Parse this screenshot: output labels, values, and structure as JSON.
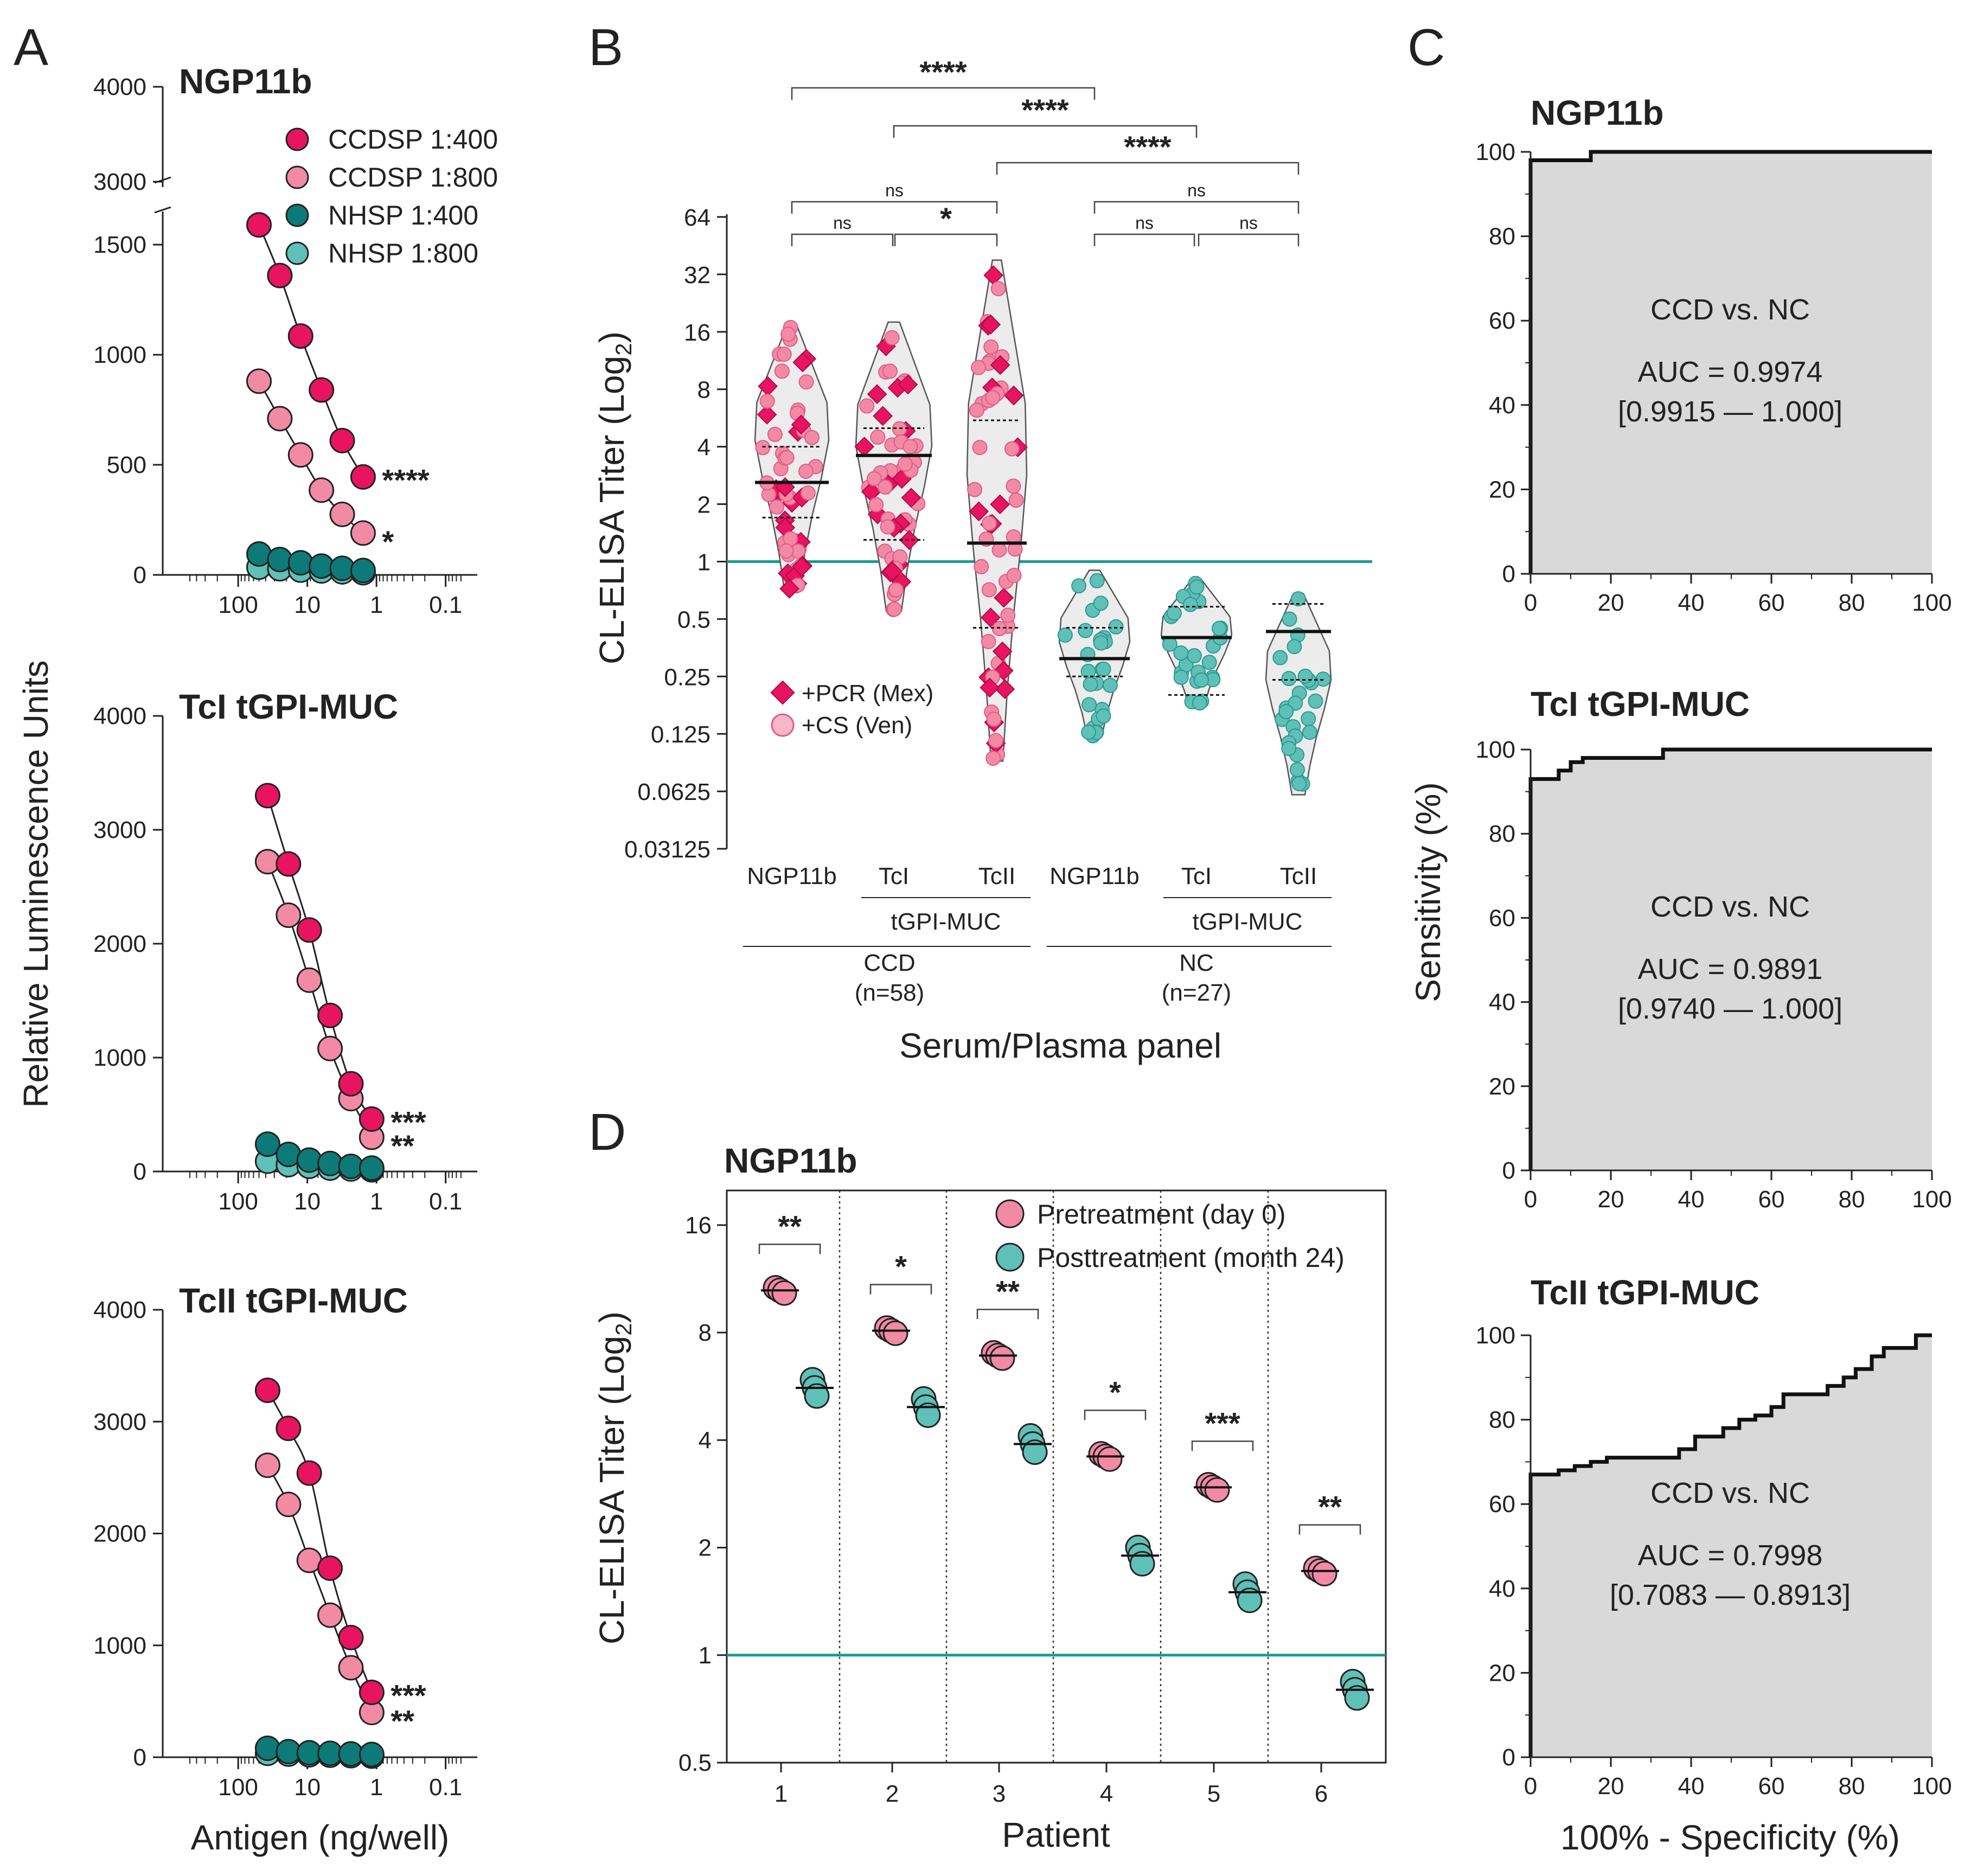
{
  "colors": {
    "ccd_dark": "#e8145f",
    "ccd_light": "#f28aa6",
    "nc_dark": "#0e7a78",
    "nc_light": "#5fc0b8",
    "cutoff": "#1a9a94",
    "roc_fill": "#d9d9d9"
  },
  "panel_labels": {
    "a": "A",
    "b": "B",
    "c": "C",
    "d": "D"
  },
  "panel_a": {
    "ylabel": "Relative Luminescence Units",
    "xlabel": "Antigen (ng/well)",
    "legend": [
      "CCDSP 1:400",
      "CCDSP 1:800",
      "NHSP 1:400",
      "NHSP 1:800"
    ],
    "x_ticks": [
      "100",
      "10",
      "1",
      "0.1"
    ]
  },
  "panel_b": {
    "ylabel": "CL-ELISA Titer (Log",
    "ylabel_sub": "2",
    "ylabel_close": ")",
    "xlabel": "Serum/Plasma panel",
    "y_ticks": [
      "64",
      "32",
      "16",
      "8",
      "4",
      "2",
      "1",
      "0.5",
      "0.25",
      "0.125",
      "0.0625",
      "0.03125"
    ],
    "categories": [
      "NGP11b",
      "TcI",
      "TcII",
      "NGP11b",
      "TcI",
      "TcII"
    ],
    "subgroup": "tGPI-MUC",
    "groups": [
      {
        "name": "CCD",
        "n": "(n=58)"
      },
      {
        "name": "NC",
        "n": "(n=27)"
      }
    ],
    "legend": [
      "+PCR (Mex)",
      "+CS (Ven)"
    ],
    "sig": {
      "ccd_ngp_tci": "ns",
      "ccd_tci_tcii": "*",
      "ccd_ngp_tcii": "ns",
      "nc_ngp_tci": "ns",
      "nc_tci_tcii": "ns",
      "nc_ngp_tcii": "ns",
      "ngp_vs_nc": "****",
      "tci_vs_nc": "****",
      "tcii_vs_nc": "****"
    }
  },
  "panel_c": {
    "ylabel": "Sensitivity (%)",
    "xlabel": "100% - Specificity (%)",
    "ticks": [
      "0",
      "20",
      "40",
      "60",
      "80",
      "100"
    ],
    "plots": [
      {
        "title": "NGP11b",
        "label": "CCD vs. NC",
        "auc": "AUC = 0.9974",
        "ci": "[0.9915 — 1.000]"
      },
      {
        "title": "TcI tGPI-MUC",
        "label": "CCD vs. NC",
        "auc": "AUC = 0.9891",
        "ci": "[0.9740 — 1.000]"
      },
      {
        "title": "TcII tGPI-MUC",
        "label": "CCD vs. NC",
        "auc": "AUC = 0.7998",
        "ci": "[0.7083 — 0.8913]"
      }
    ]
  },
  "panel_d": {
    "title": "NGP11b",
    "ylabel": "CL-ELISA Titer (Log",
    "ylabel_sub": "2",
    "ylabel_close": ")",
    "xlabel": "Patient",
    "y_ticks": [
      "16",
      "8",
      "4",
      "2",
      "1",
      "0.5"
    ],
    "patients": [
      "1",
      "2",
      "3",
      "4",
      "5",
      "6"
    ],
    "legend": [
      "Pretreatment (day 0)",
      "Posttreatment (month 24)"
    ],
    "sig": [
      "**",
      "*",
      "**",
      "*",
      "***",
      "**"
    ]
  },
  "chart_data": [
    {
      "type": "scatter",
      "title": "NGP11b",
      "xlabel": "Antigen (ng/well)",
      "ylabel": "Relative Luminescence Units",
      "x_scale": "log-reversed",
      "xlim": [
        500,
        0.05
      ],
      "ylim": [
        0,
        4000
      ],
      "y_ticks": [
        0,
        500,
        1000,
        1500,
        3000,
        4000
      ],
      "y_break": [
        1700,
        3000
      ],
      "x": [
        50,
        25,
        12.5,
        6.25,
        3.125,
        1.5625
      ],
      "series": [
        {
          "name": "CCDSP 1:400",
          "values": [
            1590,
            1360,
            1085,
            840,
            610,
            445
          ]
        },
        {
          "name": "CCDSP 1:800",
          "values": [
            880,
            710,
            545,
            385,
            275,
            190
          ]
        },
        {
          "name": "NHSP 1:400",
          "values": [
            95,
            70,
            55,
            40,
            30,
            20
          ]
        },
        {
          "name": "NHSP 1:800",
          "values": [
            35,
            28,
            22,
            18,
            14,
            10
          ]
        }
      ],
      "significance": [
        "****",
        "*"
      ]
    },
    {
      "type": "scatter",
      "title": "TcI tGPI-MUC",
      "xlabel": "Antigen (ng/well)",
      "ylabel": "Relative Luminescence Units",
      "x_scale": "log-reversed",
      "xlim": [
        500,
        0.05
      ],
      "ylim": [
        0,
        4000
      ],
      "y_ticks": [
        0,
        1000,
        2000,
        3000,
        4000
      ],
      "x": [
        37.5,
        18.75,
        9.375,
        4.6875,
        2.34375,
        1.171875
      ],
      "series": [
        {
          "name": "CCDSP 1:400",
          "values": [
            3300,
            2700,
            2120,
            1370,
            770,
            460
          ]
        },
        {
          "name": "CCDSP 1:800",
          "values": [
            2720,
            2250,
            1680,
            1080,
            640,
            300
          ]
        },
        {
          "name": "NHSP 1:400",
          "values": [
            240,
            150,
            100,
            70,
            45,
            30
          ]
        },
        {
          "name": "NHSP 1:800",
          "values": [
            90,
            60,
            45,
            30,
            22,
            15
          ]
        }
      ],
      "significance": [
        "***",
        "**"
      ]
    },
    {
      "type": "scatter",
      "title": "TcII tGPI-MUC",
      "xlabel": "Antigen (ng/well)",
      "ylabel": "Relative Luminescence Units",
      "x_scale": "log-reversed",
      "xlim": [
        500,
        0.05
      ],
      "ylim": [
        0,
        4000
      ],
      "y_ticks": [
        0,
        1000,
        2000,
        3000,
        4000
      ],
      "x": [
        37.5,
        18.75,
        9.375,
        4.6875,
        2.34375,
        1.171875
      ],
      "series": [
        {
          "name": "CCDSP 1:400",
          "values": [
            3280,
            2940,
            2540,
            1690,
            1070,
            580
          ]
        },
        {
          "name": "CCDSP 1:800",
          "values": [
            2610,
            2260,
            1760,
            1270,
            800,
            400
          ]
        },
        {
          "name": "NHSP 1:400",
          "values": [
            80,
            50,
            40,
            35,
            30,
            25
          ]
        },
        {
          "name": "NHSP 1:800",
          "values": [
            35,
            28,
            22,
            18,
            14,
            10
          ]
        }
      ],
      "significance": [
        "***",
        "**"
      ]
    },
    {
      "type": "violin",
      "title": "",
      "xlabel": "Serum/Plasma panel",
      "ylabel": "CL-ELISA Titer (Log2)",
      "y_scale": "log2",
      "ylim": [
        0.03125,
        64
      ],
      "cutoff": 1,
      "categories": [
        "CCD NGP11b",
        "CCD TcI tGPI-MUC",
        "CCD TcII tGPI-MUC",
        "NC NGP11b",
        "NC TcI tGPI-MUC",
        "NC TcII tGPI-MUC"
      ],
      "range": [
        [
          0.7,
          17
        ],
        [
          0.55,
          18
        ],
        [
          0.09,
          38
        ],
        [
          0.12,
          0.9
        ],
        [
          0.17,
          0.8
        ],
        [
          0.06,
          0.68
        ]
      ],
      "median": [
        2.6,
        3.6,
        1.25,
        0.31,
        0.4,
        0.43
      ],
      "quartiles": [
        [
          1.7,
          4.0
        ],
        [
          1.3,
          5.0
        ],
        [
          0.45,
          5.5
        ],
        [
          0.25,
          0.45
        ],
        [
          0.2,
          0.58
        ],
        [
          0.24,
          0.6
        ]
      ]
    },
    {
      "type": "line",
      "title": "NGP11b",
      "xlabel": "100% - Specificity (%)",
      "ylabel": "Sensitivity (%)",
      "xlim": [
        0,
        100
      ],
      "ylim": [
        0,
        100
      ],
      "x": [
        0,
        0,
        1,
        1,
        15,
        15,
        100
      ],
      "y": [
        0,
        98,
        98,
        98,
        98,
        100,
        100
      ],
      "auc": 0.9974
    },
    {
      "type": "line",
      "title": "TcI tGPI-MUC",
      "xlabel": "100% - Specificity (%)",
      "ylabel": "Sensitivity (%)",
      "xlim": [
        0,
        100
      ],
      "ylim": [
        0,
        100
      ],
      "x": [
        0,
        0,
        7,
        7,
        10,
        10,
        13,
        13,
        33,
        33,
        100
      ],
      "y": [
        0,
        93,
        93,
        95,
        95,
        97,
        97,
        98,
        98,
        100,
        100
      ],
      "auc": 0.9891
    },
    {
      "type": "line",
      "title": "TcII tGPI-MUC",
      "xlabel": "100% - Specificity (%)",
      "ylabel": "Sensitivity (%)",
      "xlim": [
        0,
        100
      ],
      "ylim": [
        0,
        100
      ],
      "x": [
        0,
        0,
        7,
        7,
        11,
        11,
        15,
        15,
        19,
        19,
        37,
        37,
        41,
        41,
        48,
        48,
        52,
        52,
        56,
        56,
        60,
        60,
        63,
        63,
        67,
        67,
        74,
        74,
        78,
        78,
        81,
        81,
        85,
        85,
        88,
        88,
        96,
        96,
        100
      ],
      "y": [
        0,
        67,
        67,
        68,
        68,
        69,
        69,
        70,
        70,
        71,
        71,
        73,
        73,
        76,
        76,
        78,
        78,
        80,
        80,
        81,
        81,
        83,
        83,
        86,
        86,
        86,
        86,
        88,
        88,
        90,
        90,
        92,
        92,
        95,
        95,
        97,
        97,
        100,
        100
      ],
      "auc": 0.7998
    },
    {
      "type": "scatter",
      "title": "NGP11b",
      "xlabel": "Patient",
      "ylabel": "CL-ELISA Titer (Log2)",
      "y_scale": "log2",
      "ylim": [
        0.5,
        20
      ],
      "cutoff": 1,
      "categories": [
        "1",
        "2",
        "3",
        "4",
        "5",
        "6"
      ],
      "series": [
        {
          "name": "Pretreatment (day 0)",
          "values": [
            10.5,
            8.1,
            6.9,
            3.6,
            2.95,
            1.72
          ]
        },
        {
          "name": "Posttreatment (month 24)",
          "values": [
            5.6,
            4.95,
            3.9,
            1.9,
            1.5,
            0.8
          ]
        }
      ],
      "significance": [
        "**",
        "*",
        "**",
        "*",
        "***",
        "**"
      ]
    }
  ]
}
